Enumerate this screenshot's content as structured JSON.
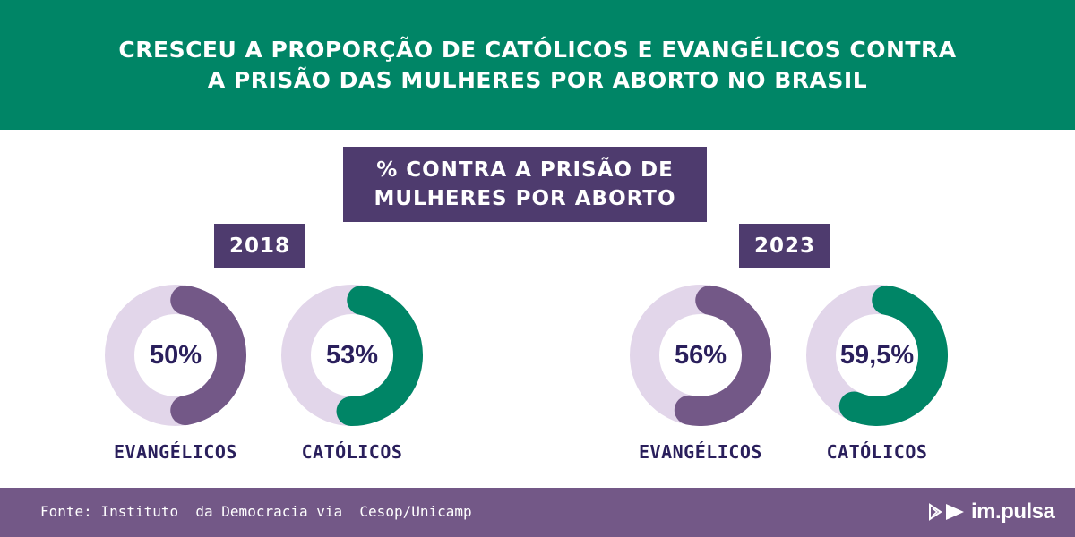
{
  "header": {
    "title": "CRESCEU A PROPORÇÃO DE CATÓLICOS E EVANGÉLICOS CONTRA A PRISÃO DAS MULHERES POR ABORTO NO BRASIL"
  },
  "subtitle": "% CONTRA A PRISÃO DE MULHERES POR ABORTO",
  "footer": {
    "source": "Fonte: Instituto  da Democracia via  Cesop/Unicamp",
    "logo_text": "im.pulsa"
  },
  "colors": {
    "header_bg": "#008566",
    "box_bg": "#4e3b6e",
    "track": "#e2d6ea",
    "evangelicos": "#735887",
    "catolicos": "#008566",
    "footer_bg": "#735887"
  },
  "chart_data": [
    {
      "type": "pie",
      "year": "2018",
      "categories": [
        "EVANGÉLICOS",
        "CATÓLICOS"
      ],
      "values": [
        50,
        53
      ],
      "value_labels": [
        "50%",
        "53%"
      ],
      "unit": "%"
    },
    {
      "type": "pie",
      "year": "2023",
      "categories": [
        "EVANGÉLICOS",
        "CATÓLICOS"
      ],
      "values": [
        56,
        59.5
      ],
      "value_labels": [
        "56%",
        "59,5%"
      ],
      "unit": "%"
    }
  ]
}
